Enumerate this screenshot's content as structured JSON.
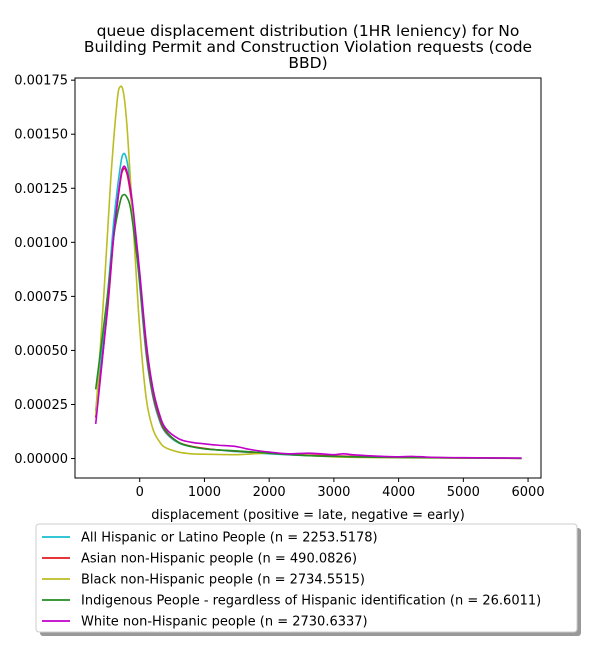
{
  "chart_data": {
    "type": "line",
    "title": [
      "queue displacement distribution (1HR leniency) for No",
      "Building Permit and Construction Violation  requests (code",
      "BBD)"
    ],
    "xlabel": "displacement (positive = late, negative = early)",
    "ylabel": "",
    "xlim": [
      -1000,
      6200
    ],
    "ylim": [
      -9e-05,
      0.00176
    ],
    "xticks": [
      0,
      1000,
      2000,
      3000,
      4000,
      5000,
      6000
    ],
    "xtick_labels": [
      "0",
      "1000",
      "2000",
      "3000",
      "4000",
      "5000",
      "6000"
    ],
    "yticks": [
      0,
      0.00025,
      0.0005,
      0.00075,
      0.001,
      0.00125,
      0.0015,
      0.00175
    ],
    "ytick_labels": [
      "0.00000",
      "0.00025",
      "0.00050",
      "0.00075",
      "0.00100",
      "0.00125",
      "0.00150",
      "0.00175"
    ],
    "grid": false,
    "legend_position": "below",
    "series": [
      {
        "name": "All Hispanic or Latino People (n = 2253.5178)",
        "color": "#17becf",
        "x": [
          -680,
          -500,
          -400,
          -300,
          -250,
          -200,
          -150,
          -100,
          0,
          100,
          200,
          300,
          400,
          600,
          800,
          1000,
          1200,
          1500,
          2000,
          2500,
          3000,
          3500,
          4000,
          5000,
          5900
        ],
        "y": [
          0.00022,
          0.00075,
          0.0011,
          0.00135,
          0.00141,
          0.00138,
          0.00128,
          0.00113,
          0.0008,
          0.00048,
          0.00029,
          0.00018,
          0.00012,
          7.2e-05,
          5.5e-05,
          4.5e-05,
          4e-05,
          3.2e-05,
          2.2e-05,
          1.5e-05,
          1e-05,
          6e-06,
          5e-06,
          3e-06,
          1e-06
        ]
      },
      {
        "name": "Asian non-Hispanic people (n = 490.0826)",
        "color": "#e41a1c",
        "x": [
          -680,
          -500,
          -400,
          -300,
          -250,
          -200,
          -150,
          -100,
          0,
          100,
          200,
          300,
          400,
          600,
          800,
          1000,
          1200,
          1500,
          2000,
          2500,
          3000,
          3500,
          4000,
          5000,
          5900
        ],
        "y": [
          0.00019,
          0.00068,
          0.00103,
          0.00128,
          0.00134,
          0.00132,
          0.00124,
          0.00112,
          0.00082,
          0.0005,
          0.0003,
          0.00019,
          0.000125,
          7.5e-05,
          5.7e-05,
          4.7e-05,
          4e-05,
          3.4e-05,
          2.5e-05,
          1.7e-05,
          1.2e-05,
          8e-06,
          5e-06,
          3e-06,
          1e-06
        ]
      },
      {
        "name": "Black non-Hispanic people (n = 2734.5515)",
        "color": "#bcbd22",
        "x": [
          -680,
          -550,
          -450,
          -350,
          -300,
          -250,
          -200,
          -150,
          -100,
          0,
          100,
          200,
          300,
          400,
          600,
          800,
          1000,
          1500,
          2000,
          2500,
          3000,
          3500,
          4000,
          5000,
          5900
        ],
        "y": [
          0.0002,
          0.00078,
          0.00128,
          0.00165,
          0.00172,
          0.00169,
          0.00155,
          0.00132,
          0.00108,
          0.0006,
          0.00028,
          0.00014,
          8e-05,
          5e-05,
          3e-05,
          2.2e-05,
          2e-05,
          1.8e-05,
          2.5e-05,
          1.6e-05,
          8e-06,
          5e-06,
          4e-06,
          2e-06,
          1e-06
        ]
      },
      {
        "name": "Indigenous People - regardless of Hispanic identification (n = 26.6011)",
        "color": "#228b22",
        "x": [
          -680,
          -500,
          -400,
          -300,
          -250,
          -200,
          -150,
          -100,
          0,
          100,
          200,
          300,
          400,
          600,
          800,
          1000,
          1200,
          1500,
          2000,
          2500,
          3000,
          3500,
          4000,
          5000,
          5900
        ],
        "y": [
          0.00032,
          0.00075,
          0.00103,
          0.00119,
          0.00122,
          0.00121,
          0.00117,
          0.00107,
          0.00082,
          0.00052,
          0.00031,
          0.0002,
          0.00013,
          7.5e-05,
          5.5e-05,
          4.5e-05,
          4e-05,
          3.5e-05,
          2.5e-05,
          1.5e-05,
          1e-05,
          7e-06,
          5e-06,
          3e-06,
          1e-06
        ]
      },
      {
        "name": "White non-Hispanic people (n = 2730.6337)",
        "color": "#c000c8",
        "x": [
          -680,
          -500,
          -400,
          -300,
          -250,
          -200,
          -150,
          -100,
          0,
          100,
          200,
          300,
          400,
          600,
          800,
          1000,
          1200,
          1500,
          1700,
          2000,
          2300,
          2600,
          2800,
          3000,
          3150,
          3300,
          3600,
          4000,
          4200,
          4500,
          5000,
          5900
        ],
        "y": [
          0.00016,
          0.00069,
          0.00104,
          0.00129,
          0.00135,
          0.00133,
          0.00126,
          0.00115,
          0.00086,
          0.00054,
          0.00033,
          0.00021,
          0.00014,
          9.2e-05,
          7.5e-05,
          6.8e-05,
          6.2e-05,
          5.5e-05,
          4.2e-05,
          3e-05,
          2.2e-05,
          2.5e-05,
          2.2e-05,
          1.8e-05,
          2.2e-05,
          1.7e-05,
          1.2e-05,
          8e-06,
          1e-05,
          6e-06,
          4e-06,
          2e-06
        ]
      }
    ]
  }
}
